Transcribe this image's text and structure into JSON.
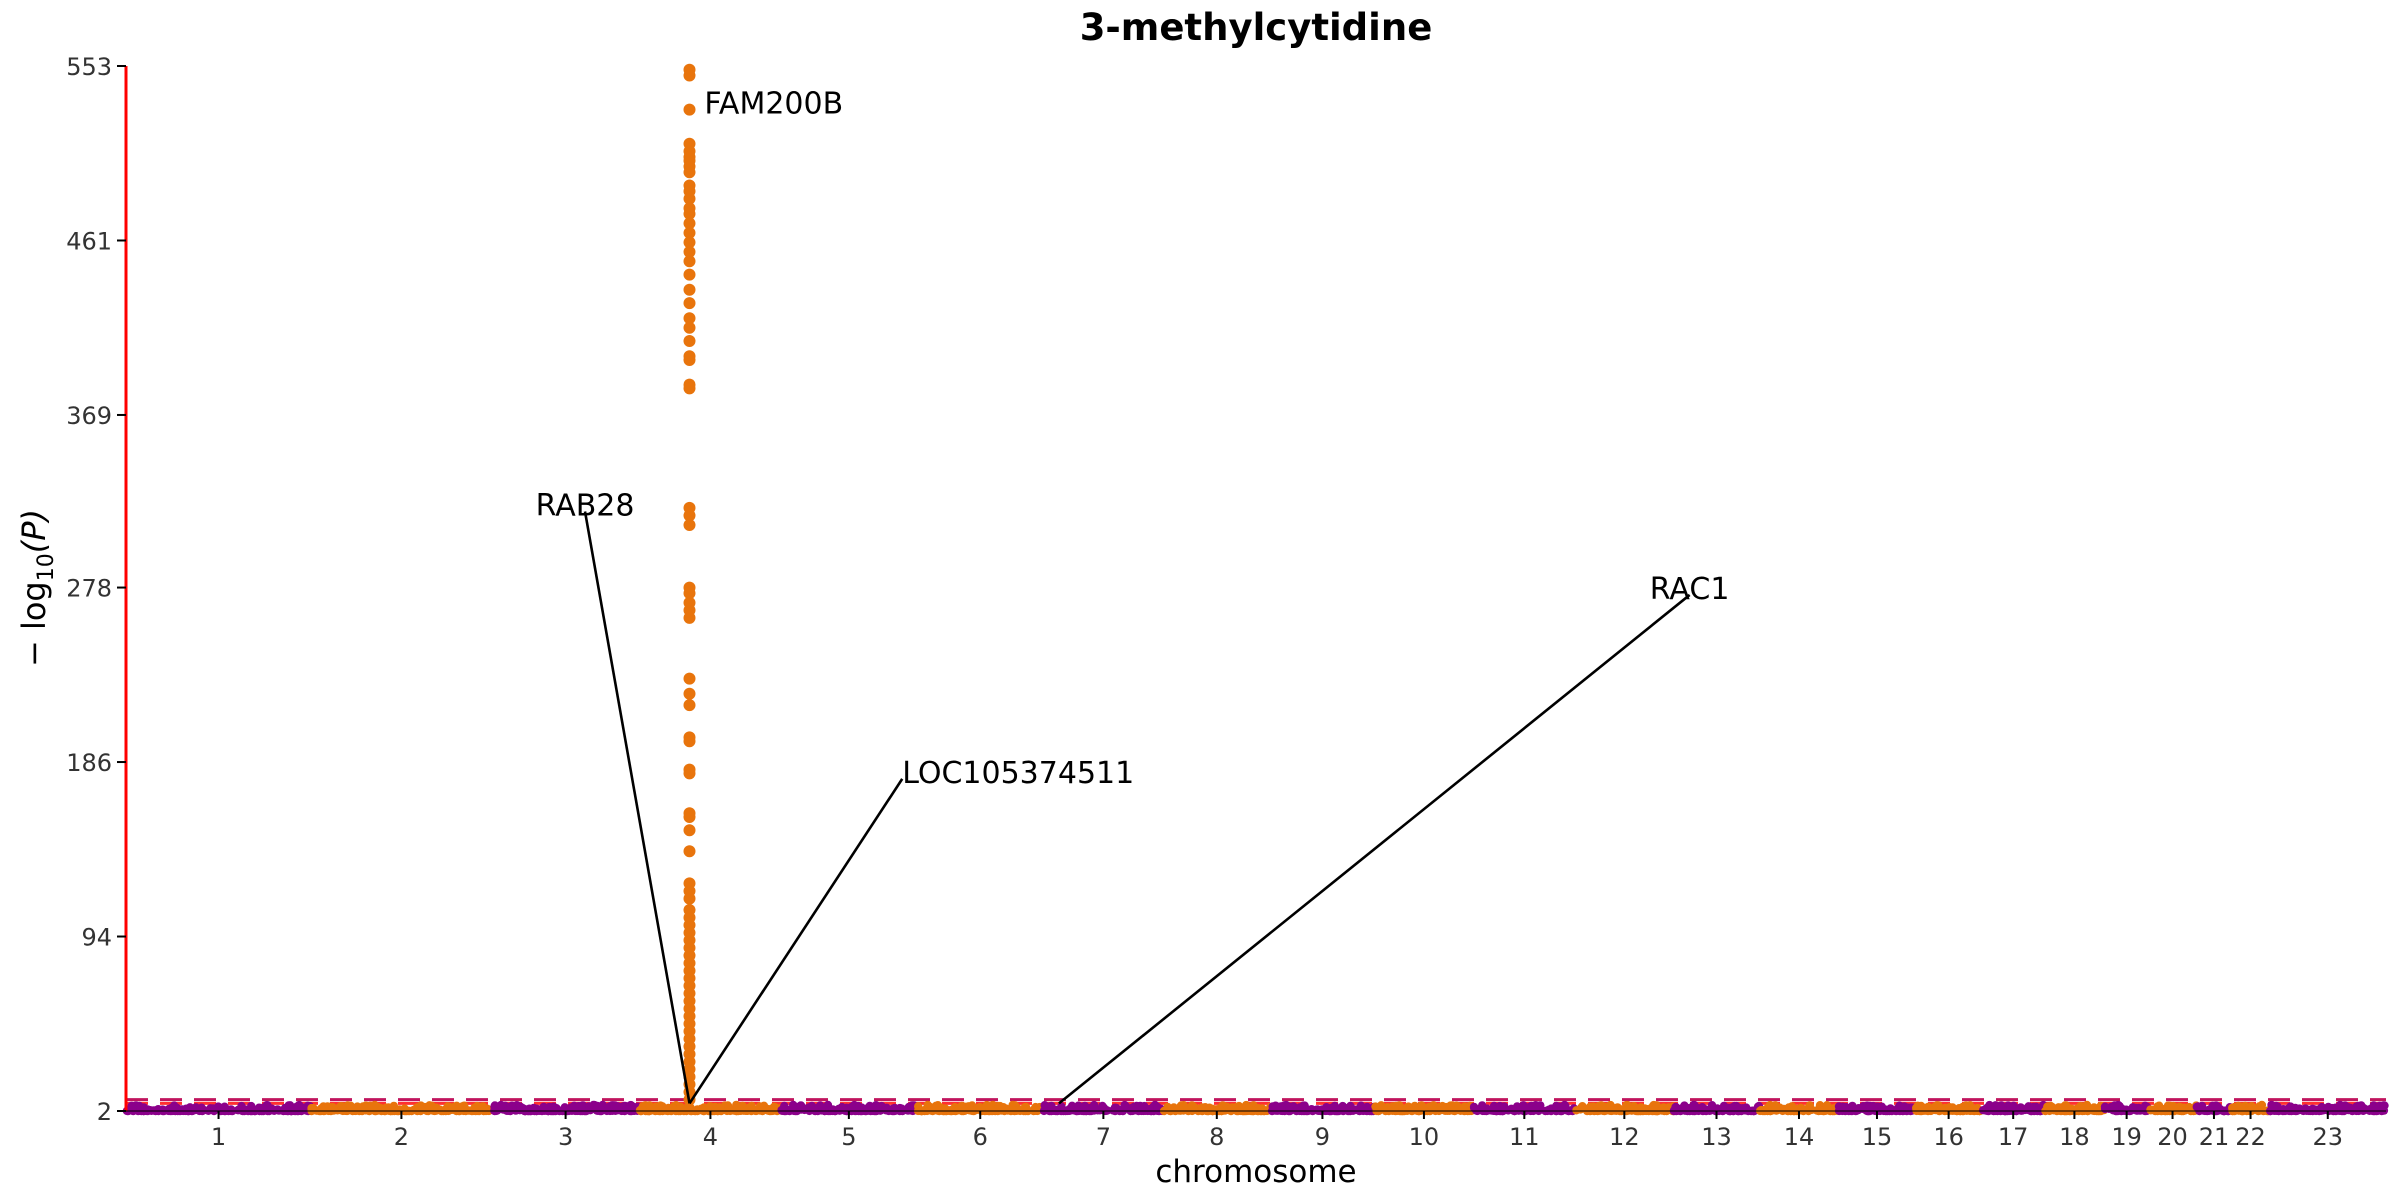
{
  "chart_data": {
    "type": "scatter",
    "title": "3-methylcytidine",
    "xlabel": "chromosome",
    "ylabel_main": "− log",
    "ylabel_sub": "10",
    "ylabel_tail": "(P)",
    "yticks": [
      2,
      94,
      186,
      278,
      369,
      461,
      553
    ],
    "ylim": [
      2,
      553
    ],
    "chromosomes": [
      {
        "label": "1",
        "start": 0,
        "end": 248
      },
      {
        "label": "2",
        "start": 248,
        "end": 490
      },
      {
        "label": "3",
        "start": 490,
        "end": 688
      },
      {
        "label": "4",
        "start": 688,
        "end": 878
      },
      {
        "label": "5",
        "start": 878,
        "end": 1059
      },
      {
        "label": "6",
        "start": 1059,
        "end": 1230
      },
      {
        "label": "7",
        "start": 1230,
        "end": 1389
      },
      {
        "label": "8",
        "start": 1389,
        "end": 1534
      },
      {
        "label": "9",
        "start": 1534,
        "end": 1672
      },
      {
        "label": "10",
        "start": 1672,
        "end": 1806
      },
      {
        "label": "11",
        "start": 1806,
        "end": 1941
      },
      {
        "label": "12",
        "start": 1941,
        "end": 2074
      },
      {
        "label": "13",
        "start": 2074,
        "end": 2188
      },
      {
        "label": "14",
        "start": 2188,
        "end": 2295
      },
      {
        "label": "15",
        "start": 2295,
        "end": 2397
      },
      {
        "label": "16",
        "start": 2397,
        "end": 2487
      },
      {
        "label": "17",
        "start": 2487,
        "end": 2570
      },
      {
        "label": "18",
        "start": 2570,
        "end": 2651
      },
      {
        "label": "19",
        "start": 2651,
        "end": 2710
      },
      {
        "label": "20",
        "start": 2710,
        "end": 2774
      },
      {
        "label": "21",
        "start": 2774,
        "end": 2821
      },
      {
        "label": "22",
        "start": 2821,
        "end": 2872
      },
      {
        "label": "23",
        "start": 2872,
        "end": 3028
      }
    ],
    "significance_lines": [
      8,
      6
    ],
    "peak": {
      "chromosome": "4",
      "x": 755,
      "y_values": [
        551,
        548,
        530,
        512,
        508,
        505,
        503,
        500,
        497,
        490,
        487,
        483,
        478,
        475,
        470,
        465,
        460,
        455,
        450,
        443,
        435,
        428,
        420,
        415,
        408,
        400,
        398,
        385,
        383,
        320,
        316,
        311,
        278,
        275,
        270,
        266,
        262,
        230,
        222,
        216,
        199,
        197,
        182,
        180,
        159,
        157,
        150,
        139,
        122,
        118,
        114,
        108,
        104,
        100,
        96,
        92,
        88,
        84,
        80,
        76,
        72,
        68,
        64,
        60,
        56,
        52,
        48,
        44,
        40,
        36,
        32,
        28,
        24,
        20,
        16,
        12,
        8
      ]
    },
    "colors": {
      "odd": "#8b008b",
      "even": "#e8740c",
      "peak": "#e8740c",
      "line_dark": "#c0145e",
      "line_light": "#ff3030",
      "axis": "#ff0000"
    },
    "annotations": [
      {
        "label": "FAM200B",
        "x": 755,
        "y": 551,
        "text_x": 775,
        "text_y": 528,
        "line": false
      },
      {
        "label": "RAB28",
        "x": 755,
        "y": 6,
        "text_x": 615,
        "text_y": 316,
        "line": true
      },
      {
        "label": "LOC105374511",
        "x": 755,
        "y": 6,
        "text_x": 1040,
        "text_y": 175,
        "line": true
      },
      {
        "label": "RAC1",
        "x": 1250,
        "y": 6,
        "text_x": 2095,
        "text_y": 272,
        "line": true
      }
    ]
  }
}
